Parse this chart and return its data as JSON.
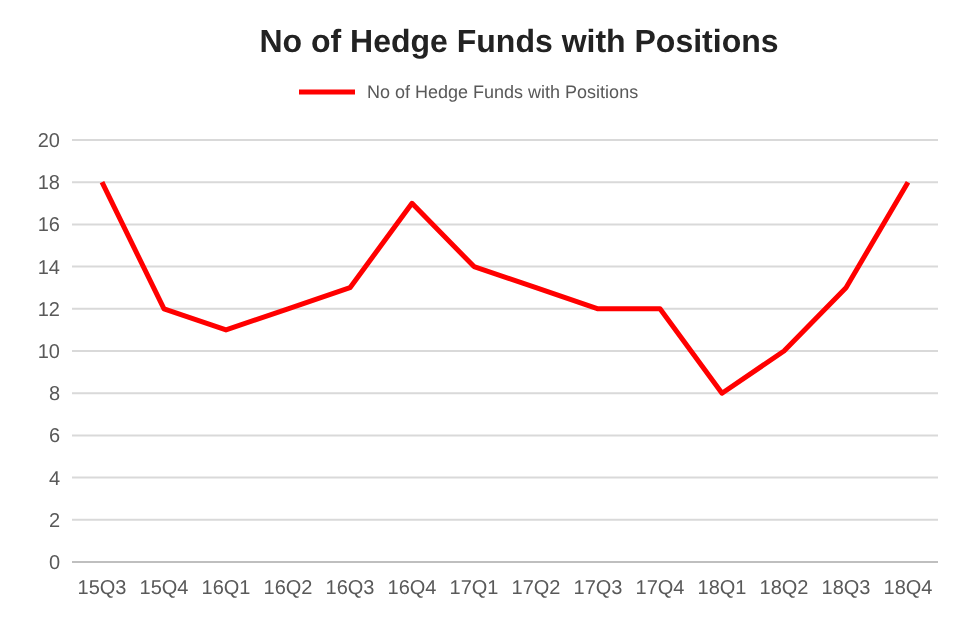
{
  "chart_data": {
    "type": "line",
    "title": "No of Hedge Funds with Positions",
    "categories": [
      "15Q3",
      "15Q4",
      "16Q1",
      "16Q2",
      "16Q3",
      "16Q4",
      "17Q1",
      "17Q2",
      "17Q3",
      "17Q4",
      "18Q1",
      "18Q2",
      "18Q3",
      "18Q4"
    ],
    "series": [
      {
        "name": "No of Hedge Funds with Positions",
        "color": "#ff0000",
        "values": [
          18,
          12,
          11,
          12,
          13,
          17,
          14,
          13,
          12,
          12,
          8,
          10,
          13,
          18
        ]
      }
    ],
    "ylim": [
      0,
      20
    ],
    "yticks": [
      0,
      2,
      4,
      6,
      8,
      10,
      12,
      14,
      16,
      18,
      20
    ],
    "grid": "y",
    "legend": "top",
    "marker": "none",
    "line_style": "solid"
  }
}
